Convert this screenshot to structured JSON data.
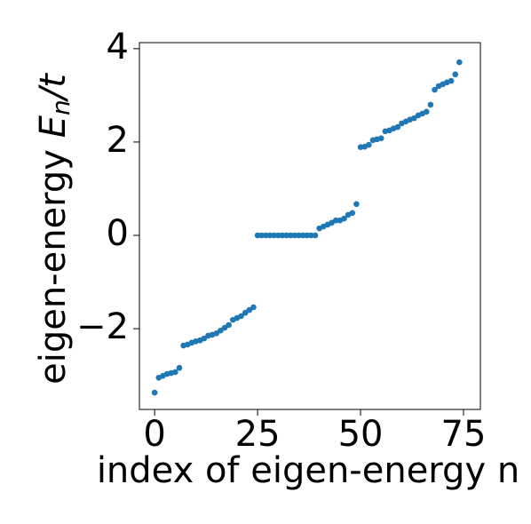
{
  "chart_data": {
    "type": "scatter",
    "xlabel": "index of eigen-energy n",
    "ylabel": [
      "eigen-energy ",
      "E",
      "n",
      "/t"
    ],
    "color": "#1f77b4",
    "x": [
      0,
      1,
      2,
      3,
      4,
      5,
      6,
      7,
      8,
      9,
      10,
      11,
      12,
      13,
      14,
      15,
      16,
      17,
      18,
      19,
      20,
      21,
      22,
      23,
      24,
      25,
      26,
      27,
      28,
      29,
      30,
      31,
      32,
      33,
      34,
      35,
      36,
      37,
      38,
      39,
      40,
      41,
      42,
      43,
      44,
      45,
      46,
      47,
      48,
      49,
      50,
      51,
      52,
      53,
      54,
      55,
      56,
      57,
      58,
      59,
      60,
      61,
      62,
      63,
      64,
      65,
      66,
      67,
      68,
      69,
      70,
      71,
      72,
      73,
      74
    ],
    "values": [
      -3.37,
      -3.05,
      -3.01,
      -2.97,
      -2.95,
      -2.93,
      -2.84,
      -2.36,
      -2.34,
      -2.3,
      -2.27,
      -2.25,
      -2.21,
      -2.15,
      -2.13,
      -2.1,
      -2.04,
      -1.98,
      -1.92,
      -1.81,
      -1.77,
      -1.73,
      -1.66,
      -1.6,
      -1.54,
      0,
      0,
      0,
      0,
      0,
      0,
      0,
      0,
      0,
      0,
      0,
      0,
      0,
      0,
      0,
      0.15,
      0.19,
      0.23,
      0.27,
      0.32,
      0.32,
      0.36,
      0.44,
      0.48,
      0.67,
      1.89,
      1.9,
      1.94,
      2.04,
      2.06,
      2.08,
      2.23,
      2.25,
      2.29,
      2.32,
      2.4,
      2.44,
      2.48,
      2.51,
      2.57,
      2.61,
      2.65,
      2.8,
      3.12,
      3.2,
      3.24,
      3.28,
      3.31,
      3.45,
      3.71
    ],
    "xlim": [
      -3.7,
      79.1
    ],
    "ylim": [
      -3.73,
      4.13
    ],
    "xticks": [
      0,
      25,
      50,
      75
    ],
    "yticks": [
      {
        "value": -2,
        "label": "−2"
      },
      0,
      2,
      4
    ]
  }
}
